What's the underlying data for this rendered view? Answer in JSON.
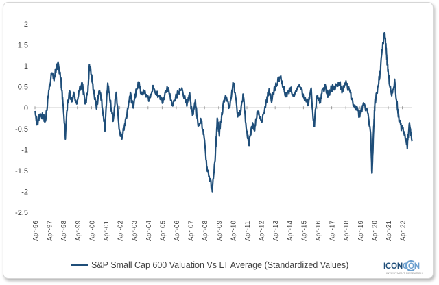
{
  "chart_data": {
    "type": "line",
    "title": "",
    "xlabel": "",
    "ylabel": "",
    "ylim": [
      -2.5,
      2
    ],
    "yticks": [
      2,
      1.5,
      1,
      0.5,
      0,
      -0.5,
      -1,
      -1.5,
      -2,
      -2.5
    ],
    "ytick_labels": [
      "2",
      "1.5",
      "1",
      "0.5",
      "0",
      "-0.5",
      "-1",
      "-1.5",
      "-2",
      "-2.5"
    ],
    "x_start": 1996.25,
    "x_end": 2022.95,
    "xtick_labels": [
      "Apr-96",
      "Apr-97",
      "Apr-98",
      "Apr-99",
      "Apr-00",
      "Apr-01",
      "Apr-02",
      "Apr-03",
      "Apr-04",
      "Apr-05",
      "Apr-06",
      "Apr-07",
      "Apr-08",
      "Apr-09",
      "Apr-10",
      "Apr-11",
      "Apr-12",
      "Apr-13",
      "Apr-14",
      "Apr-15",
      "Apr-16",
      "Apr-17",
      "Apr-18",
      "Apr-19",
      "Apr-20",
      "Apr-21",
      "Apr-22"
    ],
    "grid": false,
    "legend_position": "bottom",
    "series": [
      {
        "name": "S&P Small Cap 600 Valuation Vs LT Average (Standardized Values)",
        "color": "#1f4e79",
        "x": [
          1996.25,
          1996.4,
          1996.6,
          1996.8,
          1997.0,
          1997.2,
          1997.4,
          1997.6,
          1997.75,
          1997.9,
          1998.1,
          1998.2,
          1998.4,
          1998.55,
          1998.7,
          1998.85,
          1999.0,
          1999.2,
          1999.4,
          1999.6,
          1999.8,
          2000.0,
          2000.1,
          2000.25,
          2000.4,
          2000.6,
          2000.8,
          2001.0,
          2001.2,
          2001.4,
          2001.6,
          2001.8,
          2002.0,
          2002.2,
          2002.4,
          2002.6,
          2002.8,
          2003.0,
          2003.2,
          2003.4,
          2003.6,
          2003.8,
          2004.0,
          2004.3,
          2004.6,
          2005.0,
          2005.3,
          2005.6,
          2006.0,
          2006.3,
          2006.6,
          2007.0,
          2007.2,
          2007.4,
          2007.6,
          2007.8,
          2008.0,
          2008.2,
          2008.4,
          2008.6,
          2008.8,
          2009.0,
          2009.15,
          2009.3,
          2009.5,
          2009.7,
          2010.0,
          2010.3,
          2010.6,
          2010.8,
          2011.0,
          2011.2,
          2011.4,
          2011.6,
          2011.8,
          2012.0,
          2012.3,
          2012.6,
          2012.8,
          2013.0,
          2013.3,
          2013.6,
          2013.8,
          2014.0,
          2014.3,
          2014.6,
          2015.0,
          2015.3,
          2015.6,
          2015.8,
          2016.0,
          2016.2,
          2016.4,
          2016.6,
          2016.8,
          2017.0,
          2017.2,
          2017.5,
          2017.8,
          2018.0,
          2018.3,
          2018.6,
          2018.8,
          2019.0,
          2019.2,
          2019.5,
          2019.8,
          2020.0,
          2020.1,
          2020.2,
          2020.3,
          2020.5,
          2020.7,
          2020.85,
          2021.0,
          2021.1,
          2021.2,
          2021.3,
          2021.5,
          2021.7,
          2021.9,
          2022.0,
          2022.2,
          2022.4,
          2022.6,
          2022.75,
          2022.95
        ],
        "values": [
          0.0,
          -0.4,
          -0.15,
          -0.2,
          -0.3,
          0.3,
          0.8,
          0.7,
          0.95,
          1.05,
          0.6,
          0.2,
          -0.7,
          0.1,
          0.35,
          0.15,
          0.3,
          0.1,
          0.4,
          0.6,
          0.05,
          0.4,
          1.0,
          0.8,
          0.4,
          0.0,
          0.4,
          0.1,
          -0.5,
          0.6,
          0.1,
          -0.3,
          0.4,
          -0.5,
          -0.7,
          -0.4,
          -0.1,
          0.3,
          0.0,
          0.4,
          0.6,
          0.3,
          0.4,
          0.2,
          0.5,
          0.25,
          0.15,
          0.5,
          0.1,
          0.3,
          0.45,
          0.1,
          0.3,
          -0.2,
          0.2,
          -0.5,
          -0.3,
          -0.6,
          -1.4,
          -1.7,
          -1.95,
          -1.2,
          -0.3,
          -0.6,
          -0.1,
          0.3,
          0.0,
          0.6,
          -0.2,
          -0.1,
          0.3,
          -0.5,
          -0.85,
          -0.4,
          -0.5,
          -0.1,
          -0.3,
          0.1,
          0.4,
          0.2,
          0.55,
          0.75,
          0.55,
          0.3,
          0.45,
          0.3,
          0.5,
          0.25,
          0.1,
          0.4,
          -0.5,
          0.3,
          0.1,
          0.4,
          0.5,
          0.3,
          0.45,
          0.5,
          0.6,
          0.4,
          0.6,
          0.3,
          0.1,
          0.0,
          -0.2,
          0.05,
          -0.1,
          -0.6,
          -1.6,
          -0.7,
          0.1,
          0.45,
          0.9,
          1.5,
          1.8,
          1.4,
          1.0,
          0.7,
          0.3,
          0.6,
          0.0,
          -0.25,
          -0.5,
          -0.6,
          -0.9,
          -0.4,
          -0.8
        ]
      }
    ]
  },
  "legend": {
    "label": "S&P Small Cap 600 Valuation Vs LT Average (Standardized Values)"
  },
  "logo": {
    "text_main": "ICON",
    "text_alt": "CON",
    "tagline": "INVESTMENT RESEARCH",
    "color_main": "#1f4e79",
    "color_alt": "#6a9fcf"
  }
}
